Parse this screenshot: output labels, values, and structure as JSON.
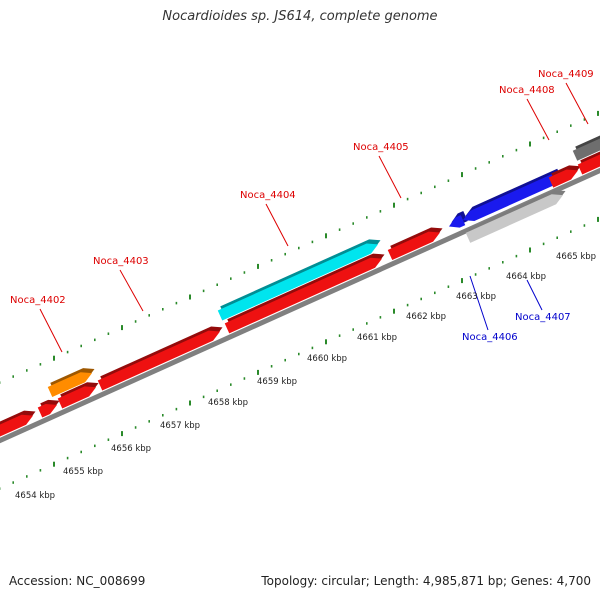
{
  "title": "Nocardioides sp. JS614, complete genome",
  "accession_text": "Accession: NC_008699",
  "topology_text": "Topology: circular; Length: 4,985,871 bp; Genes: 4,700",
  "colors": {
    "backbone": "#808080",
    "tick": "#2a8a2a",
    "label_red": "#dd0000",
    "label_blue": "#0000cc",
    "gene_red": "#ee1111",
    "gene_cyan": "#00e5ee",
    "gene_orange": "#ff8c00",
    "gene_blue": "#1a1aee",
    "gene_lightgray": "#c8c8c8",
    "gene_darkgray": "#6e6e6e"
  },
  "genes": [
    {
      "name": "Noca_4402",
      "color": "#ff8c00",
      "label_color": "#dd0000"
    },
    {
      "name": "Noca_4403",
      "color": "#ee1111",
      "label_color": "#dd0000"
    },
    {
      "name": "Noca_4404",
      "color": "#00e5ee",
      "label_color": "#dd0000"
    },
    {
      "name": "Noca_4405",
      "color": "#ee1111",
      "label_color": "#dd0000"
    },
    {
      "name": "Noca_4406",
      "color": "#1a1aee",
      "label_color": "#0000cc"
    },
    {
      "name": "Noca_4407",
      "color": "#c8c8c8",
      "label_color": "#0000cc"
    },
    {
      "name": "Noca_4408",
      "color": "#ee1111",
      "label_color": "#dd0000"
    },
    {
      "name": "Noca_4409",
      "color": "#6e6e6e",
      "label_color": "#dd0000"
    }
  ],
  "scale_labels": [
    "4654 kbp",
    "4655 kbp",
    "4656 kbp",
    "4657 kbp",
    "4658 kbp",
    "4659 kbp",
    "4660 kbp",
    "4661 kbp",
    "4662 kbp",
    "4663 kbp",
    "4664 kbp",
    "4665 kbp"
  ]
}
